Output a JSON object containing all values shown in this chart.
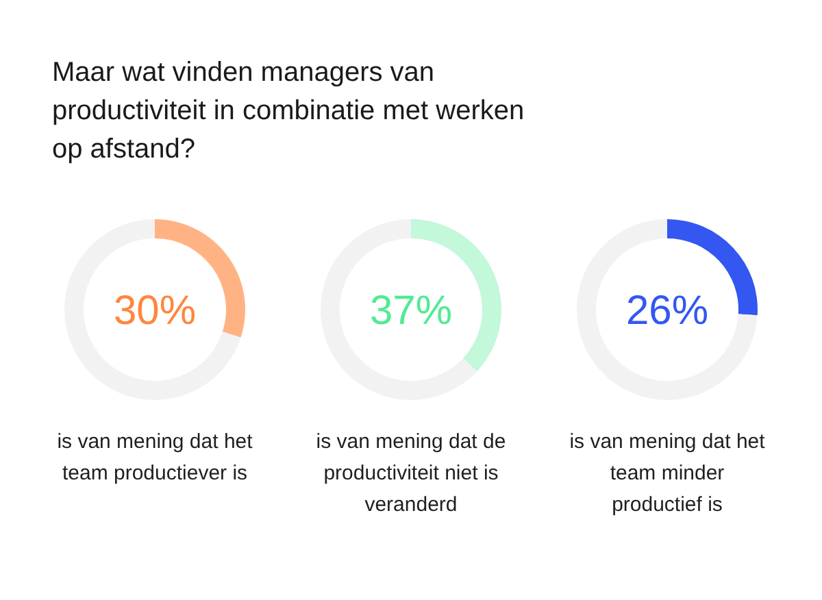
{
  "chart_data": [
    {
      "type": "donut",
      "title": "Maar wat vinden managers van productiviteit in combinatie met werken op afstand?",
      "categories": [
        null,
        null
      ],
      "values": [
        30,
        70
      ],
      "colors": [
        "#ffb385",
        "#f2f2f2"
      ],
      "annotations": [
        "30%",
        "is van mening dat het team productiever is"
      ]
    },
    {
      "type": "donut",
      "categories": [
        null,
        null
      ],
      "values": [
        37,
        63
      ],
      "colors": [
        "#c3f8da",
        "#f2f2f2"
      ],
      "annotations": [
        "37%",
        "is van mening dat de productiviteit niet is veranderd"
      ]
    },
    {
      "type": "donut",
      "categories": [
        null,
        null
      ],
      "values": [
        26,
        74
      ],
      "colors": [
        "#3357f0",
        "#f2f2f2"
      ],
      "annotations": [
        "26%",
        "is van mening dat het team minder productief is"
      ]
    }
  ]
}
